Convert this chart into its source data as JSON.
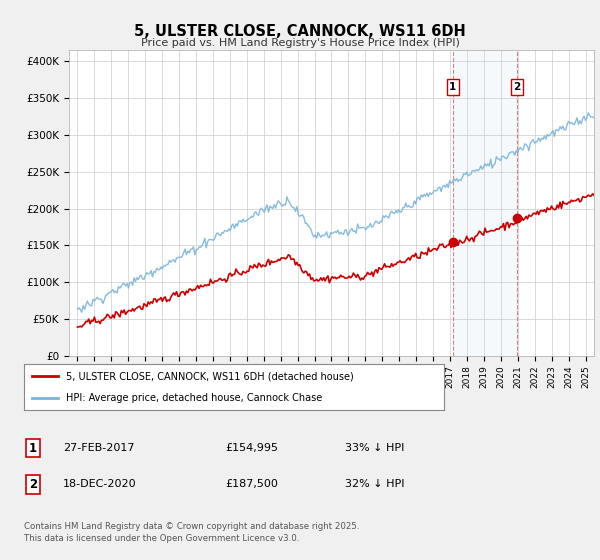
{
  "title": "5, ULSTER CLOSE, CANNOCK, WS11 6DH",
  "subtitle": "Price paid vs. HM Land Registry's House Price Index (HPI)",
  "ylabel_ticks": [
    "£0",
    "£50K",
    "£100K",
    "£150K",
    "£200K",
    "£250K",
    "£300K",
    "£350K",
    "£400K"
  ],
  "ytick_values": [
    0,
    50000,
    100000,
    150000,
    200000,
    250000,
    300000,
    350000,
    400000
  ],
  "ylim": [
    0,
    415000
  ],
  "xlim_start": 1994.5,
  "xlim_end": 2025.5,
  "hpi_color": "#7ab4d8",
  "price_color": "#cc0000",
  "background_color": "#f0f0f0",
  "plot_bg_color": "#ffffff",
  "grid_color": "#cccccc",
  "sale1_x": 2017.16,
  "sale1_price": 154995,
  "sale1_date": "27-FEB-2017",
  "sale1_label": "33% ↓ HPI",
  "sale2_x": 2020.96,
  "sale2_price": 187500,
  "sale2_date": "18-DEC-2020",
  "sale2_label": "32% ↓ HPI",
  "legend_line1": "5, ULSTER CLOSE, CANNOCK, WS11 6DH (detached house)",
  "legend_line2": "HPI: Average price, detached house, Cannock Chase",
  "footnote": "Contains HM Land Registry data © Crown copyright and database right 2025.\nThis data is licensed under the Open Government Licence v3.0.",
  "table_row1": [
    "1",
    "27-FEB-2017",
    "£154,995",
    "33% ↓ HPI"
  ],
  "table_row2": [
    "2",
    "18-DEC-2020",
    "£187,500",
    "32% ↓ HPI"
  ]
}
